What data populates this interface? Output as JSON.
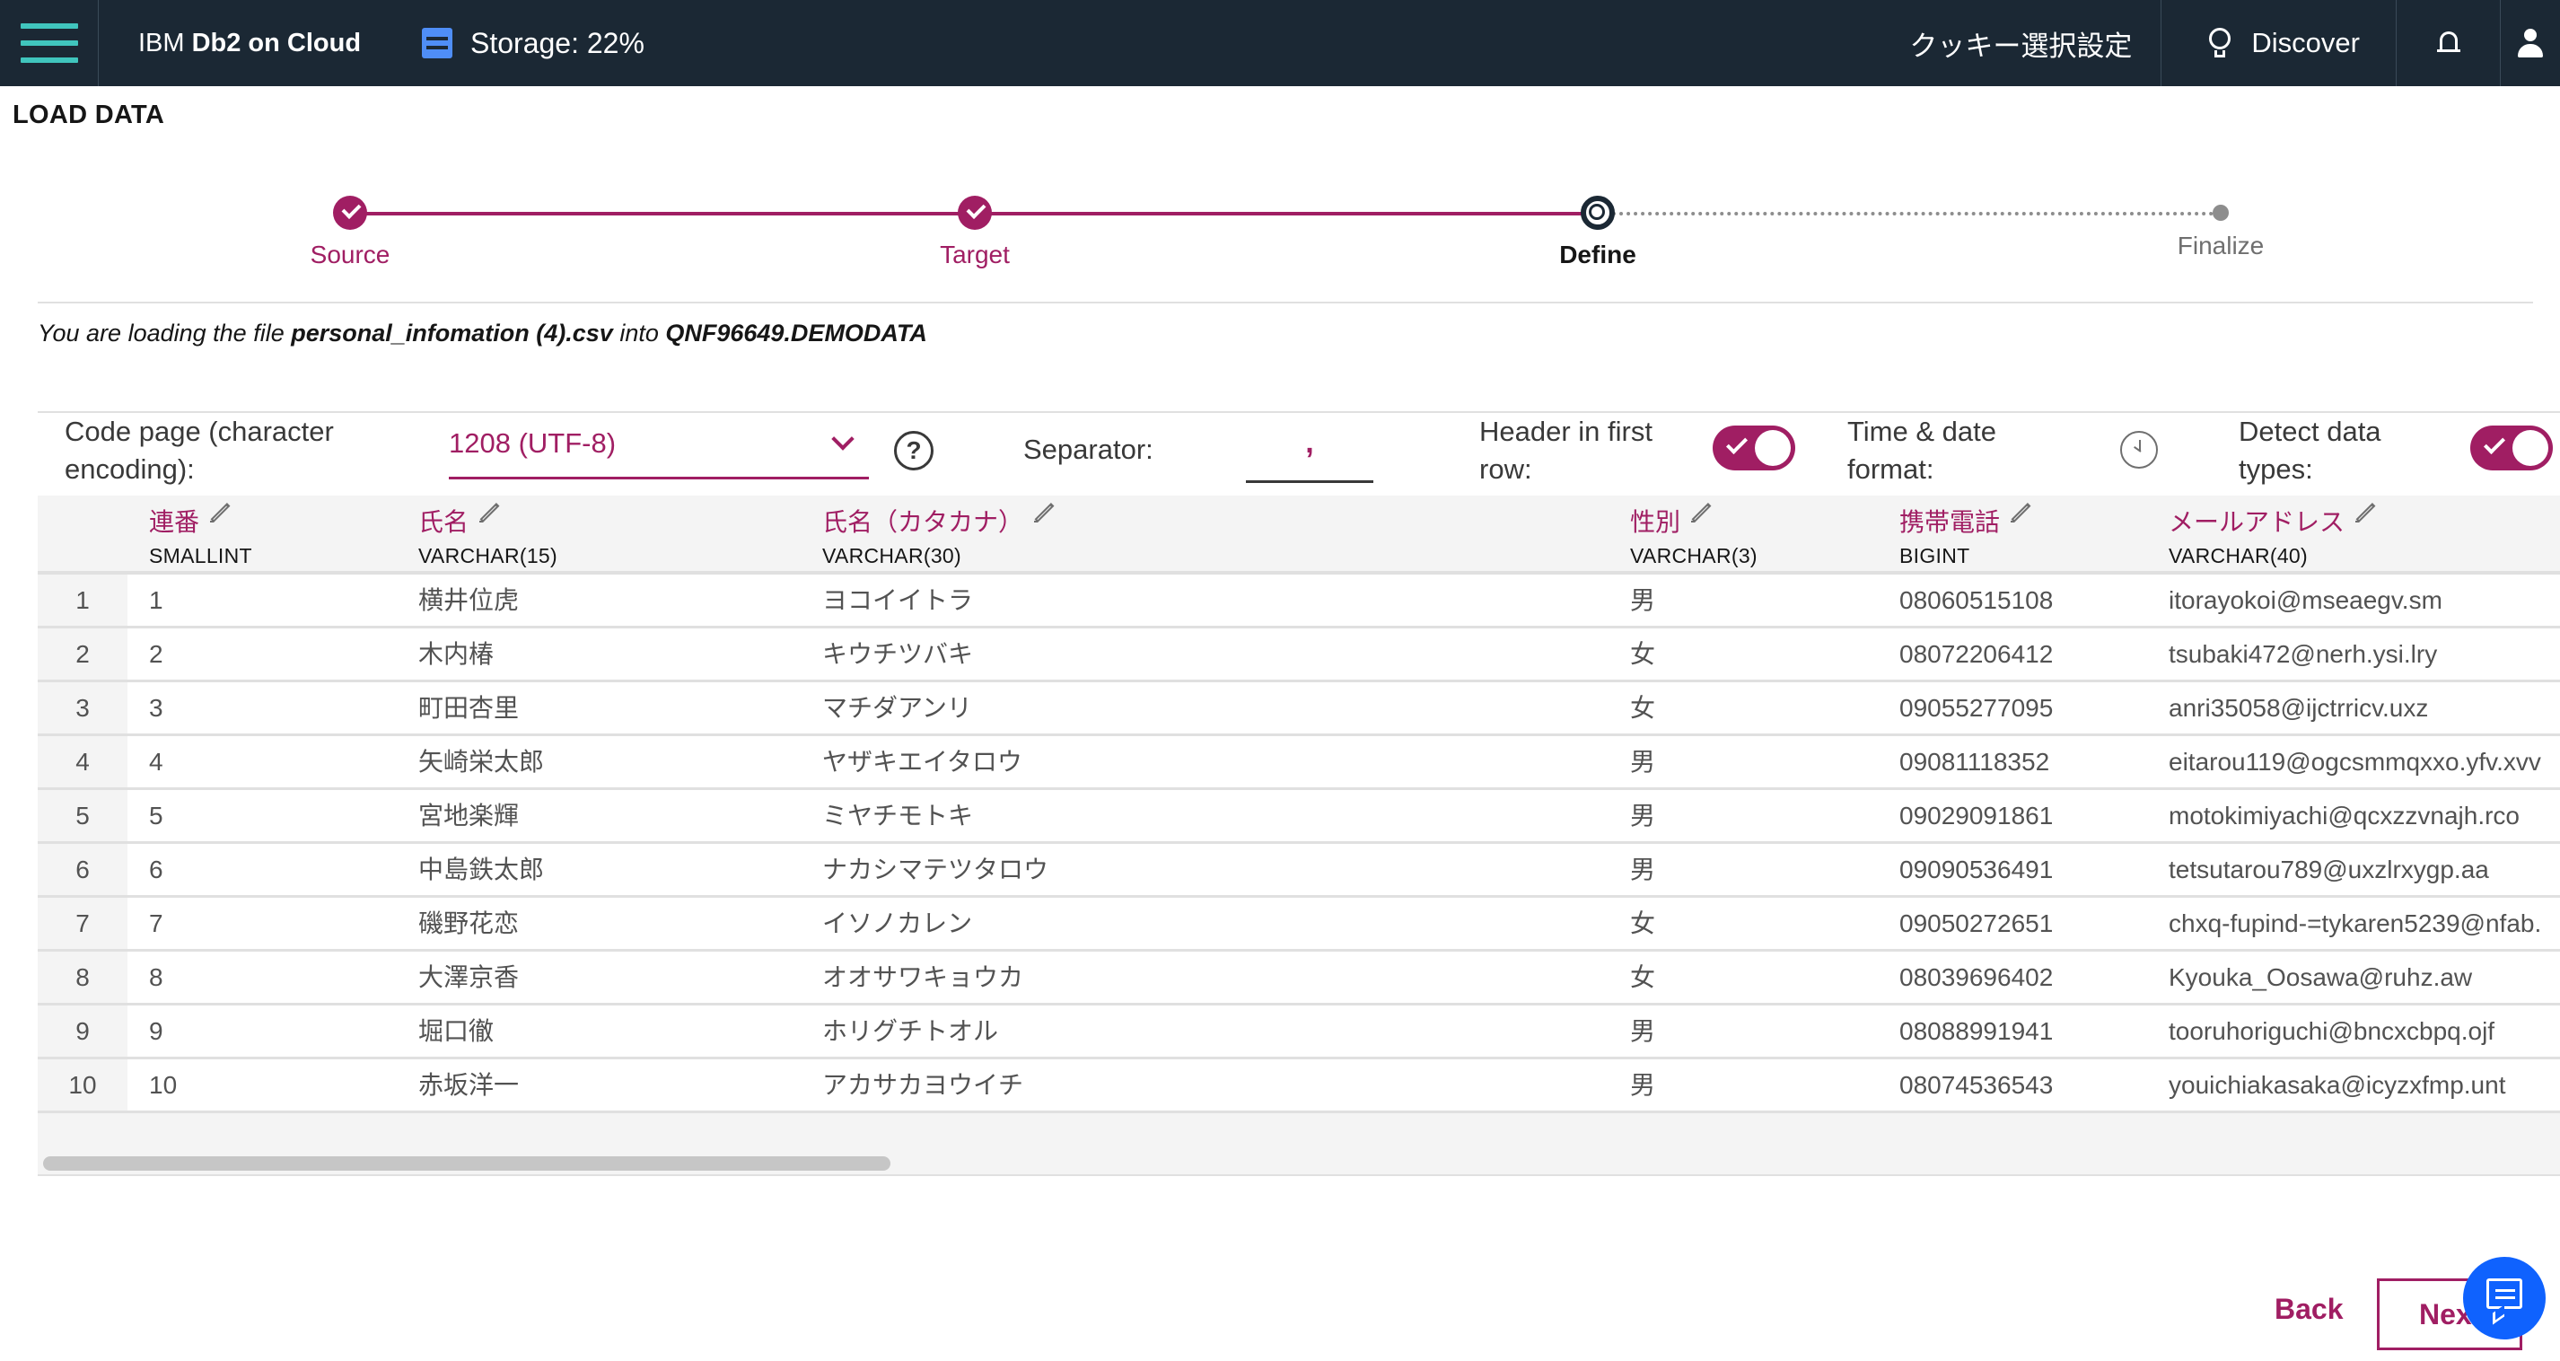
{
  "header": {
    "brand_ibm": "IBM",
    "brand_product": "Db2 on Cloud",
    "storage_label": "Storage: 22%",
    "storage_percent": 22,
    "cookie_settings": "クッキー選択設定",
    "discover_label": "Discover"
  },
  "page": {
    "title": "LOAD DATA"
  },
  "stepper": {
    "steps": [
      {
        "label": "Source",
        "state": "done"
      },
      {
        "label": "Target",
        "state": "done"
      },
      {
        "label": "Define",
        "state": "current"
      },
      {
        "label": "Finalize",
        "state": "todo"
      }
    ]
  },
  "loading_message": {
    "prefix": "You are loading the file ",
    "file": "personal_infomation (4).csv",
    "middle": " into ",
    "target": "QNF96649.DEMODATA"
  },
  "options": {
    "code_page_label_line1": "Code page (character",
    "code_page_label_line2": "encoding):",
    "code_page_value": "1208 (UTF-8)",
    "help_glyph": "?",
    "separator_label": "Separator:",
    "separator_value": ",",
    "header_label_line1": "Header in first",
    "header_label_line2": "row:",
    "header_enabled": true,
    "time_label_line1": "Time & date",
    "time_label_line2": "format:",
    "detect_label_line1": "Detect data",
    "detect_label_line2": "types:",
    "detect_enabled": true
  },
  "table": {
    "columns": [
      {
        "name": "連番",
        "type": "SMALLINT"
      },
      {
        "name": "氏名",
        "type": "VARCHAR(15)"
      },
      {
        "name": "氏名（カタカナ）",
        "type": "VARCHAR(30)"
      },
      {
        "name": "性別",
        "type": "VARCHAR(3)"
      },
      {
        "name": "携帯電話",
        "type": "BIGINT"
      },
      {
        "name": "メールアドレス",
        "type": "VARCHAR(40)"
      }
    ],
    "rows": [
      {
        "num": "1",
        "cells": [
          "1",
          "横井位虎",
          "ヨコイイトラ",
          "男",
          "08060515108",
          "itorayokoi@mseaegv.sm"
        ]
      },
      {
        "num": "2",
        "cells": [
          "2",
          "木内椿",
          "キウチツバキ",
          "女",
          "08072206412",
          "tsubaki472@nerh.ysi.lry"
        ]
      },
      {
        "num": "3",
        "cells": [
          "3",
          "町田杏里",
          "マチダアンリ",
          "女",
          "09055277095",
          "anri35058@ijctrricv.uxz"
        ]
      },
      {
        "num": "4",
        "cells": [
          "4",
          "矢崎栄太郎",
          "ヤザキエイタロウ",
          "男",
          "09081118352",
          "eitarou119@ogcsmmqxxo.yfv.xvv"
        ]
      },
      {
        "num": "5",
        "cells": [
          "5",
          "宮地楽輝",
          "ミヤチモトキ",
          "男",
          "09029091861",
          "motokimiyachi@qcxzzvnajh.rco"
        ]
      },
      {
        "num": "6",
        "cells": [
          "6",
          "中島鉄太郎",
          "ナカシマテツタロウ",
          "男",
          "09090536491",
          "tetsutarou789@uxzlrxygp.aa"
        ]
      },
      {
        "num": "7",
        "cells": [
          "7",
          "磯野花恋",
          "イソノカレン",
          "女",
          "09050272651",
          "chxq-fupind-=tykaren5239@nfab."
        ]
      },
      {
        "num": "8",
        "cells": [
          "8",
          "大澤京香",
          "オオサワキョウカ",
          "女",
          "08039696402",
          "Kyouka_Oosawa@ruhz.aw"
        ]
      },
      {
        "num": "9",
        "cells": [
          "9",
          "堀口徹",
          "ホリグチトオル",
          "男",
          "08088991941",
          "tooruhoriguchi@bncxcbpq.ojf"
        ]
      },
      {
        "num": "10",
        "cells": [
          "10",
          "赤坂洋一",
          "アカサカヨウイチ",
          "男",
          "08074536543",
          "youichiakasaka@icyzxfmp.unt"
        ]
      }
    ]
  },
  "footer": {
    "back_label": "Back",
    "next_label": "Next"
  },
  "colors": {
    "accent": "#a01e63",
    "topbar": "#1b2834",
    "menu_teal": "#40c5bd",
    "chat_blue": "#0f62fe"
  }
}
